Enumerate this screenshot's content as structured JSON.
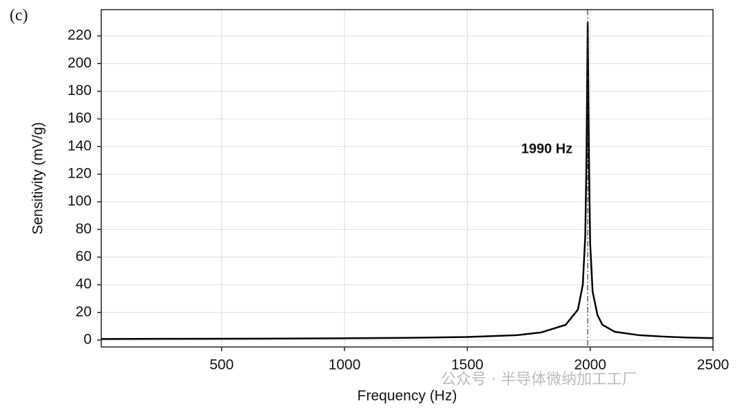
{
  "chart_data": {
    "type": "line",
    "panel_label": "(c)",
    "x_label": "Frequency (Hz)",
    "y_label": "Sensitivity (mV/g)",
    "x": [
      10,
      250,
      500,
      750,
      1000,
      1250,
      1500,
      1700,
      1800,
      1900,
      1950,
      1970,
      1980,
      1985,
      1990,
      1995,
      2000,
      2010,
      2030,
      2050,
      2100,
      2200,
      2300,
      2400,
      2500
    ],
    "series": [
      {
        "name": "Sensitivity",
        "color": "#000000",
        "values": [
          0.8,
          0.9,
          1.0,
          1.1,
          1.3,
          1.6,
          2.2,
          3.5,
          5.5,
          11,
          22,
          40,
          75,
          130,
          230,
          130,
          70,
          35,
          18,
          11,
          6,
          3.5,
          2.5,
          1.8,
          1.4
        ]
      }
    ],
    "xlim": [
      10,
      2500
    ],
    "ylim": [
      -5,
      239
    ],
    "xticks": [
      500,
      1000,
      1500,
      2000,
      2500
    ],
    "yticks": [
      0,
      20,
      40,
      60,
      80,
      100,
      120,
      140,
      160,
      180,
      200,
      220
    ],
    "grid": true,
    "annotation": {
      "text": "1990 Hz",
      "x": 1990
    },
    "watermark": "公众号 · 半导体微纳加工工厂"
  }
}
